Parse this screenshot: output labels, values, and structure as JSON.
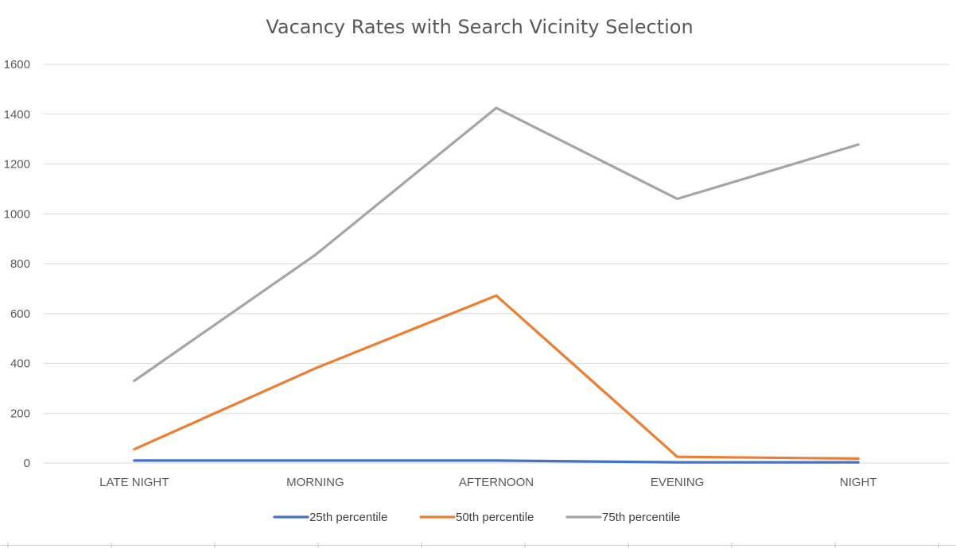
{
  "chart_data": {
    "type": "line",
    "title": "Vacancy Rates with Search Vicinity Selection",
    "xlabel": "",
    "ylabel": "",
    "categories": [
      "LATE NIGHT",
      "MORNING",
      "AFTERNOON",
      "EVENING",
      "NIGHT"
    ],
    "ylim": [
      0,
      1600
    ],
    "yticks": [
      0,
      200,
      400,
      600,
      800,
      1000,
      1200,
      1400,
      1600
    ],
    "grid": true,
    "legend_position": "bottom",
    "series": [
      {
        "name": "25th percentile",
        "color": "#4472C4",
        "values": [
          10,
          10,
          10,
          3,
          3
        ]
      },
      {
        "name": "50th percentile",
        "color": "#ED7D31",
        "values": [
          55,
          380,
          672,
          25,
          18
        ]
      },
      {
        "name": "75th percentile",
        "color": "#A5A5A5",
        "values": [
          330,
          835,
          1425,
          1060,
          1278
        ]
      }
    ]
  }
}
